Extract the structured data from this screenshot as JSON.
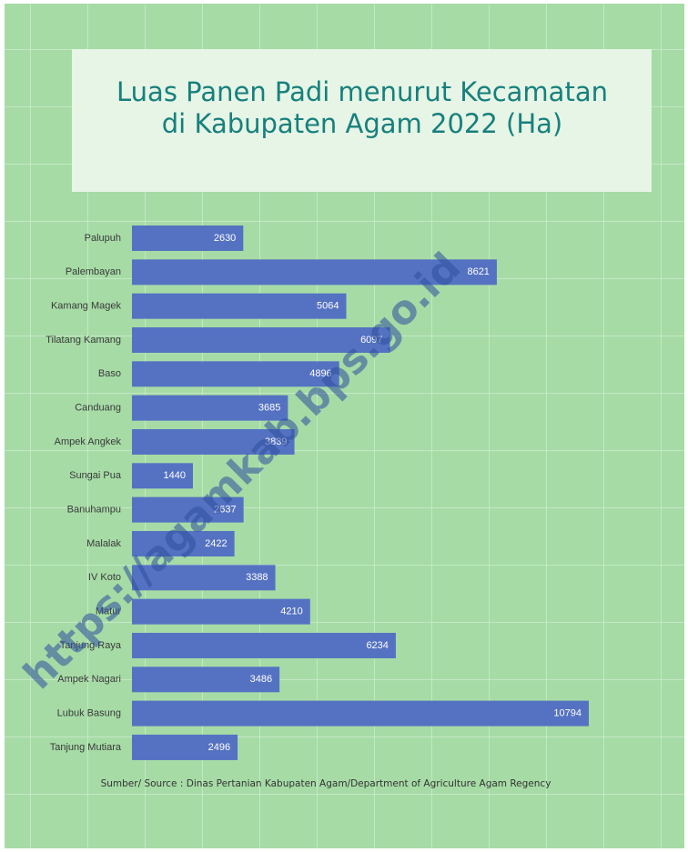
{
  "chart_data": {
    "type": "barh",
    "title": [
      "Luas Panen Padi menurut Kecamatan",
      "di Kabupaten Agam 2022 (Ha)"
    ],
    "categories": [
      "Palupuh",
      "Palembayan",
      "Kamang Magek",
      "Tilatang Kamang",
      "Baso",
      "Canduang",
      "Ampek Angkek",
      "Sungai Pua",
      "Banuhampu",
      "Malalak",
      "IV Koto",
      "Matur",
      "Tanjung Raya",
      "Ampek Nagari",
      "Lubuk Basung",
      "Tanjung Mutiara"
    ],
    "values": [
      2630,
      8621,
      5064,
      6097,
      4896,
      3685,
      3839,
      1440,
      2637,
      2422,
      3388,
      4210,
      6234,
      3486,
      10794,
      2496
    ],
    "color": "#5572c2",
    "source": "Sumber/ Source : Dinas Pertanian Kabupaten Agam/Department of Agriculture Agam Regency",
    "watermark": "https://agamkab.bps.go.id"
  }
}
